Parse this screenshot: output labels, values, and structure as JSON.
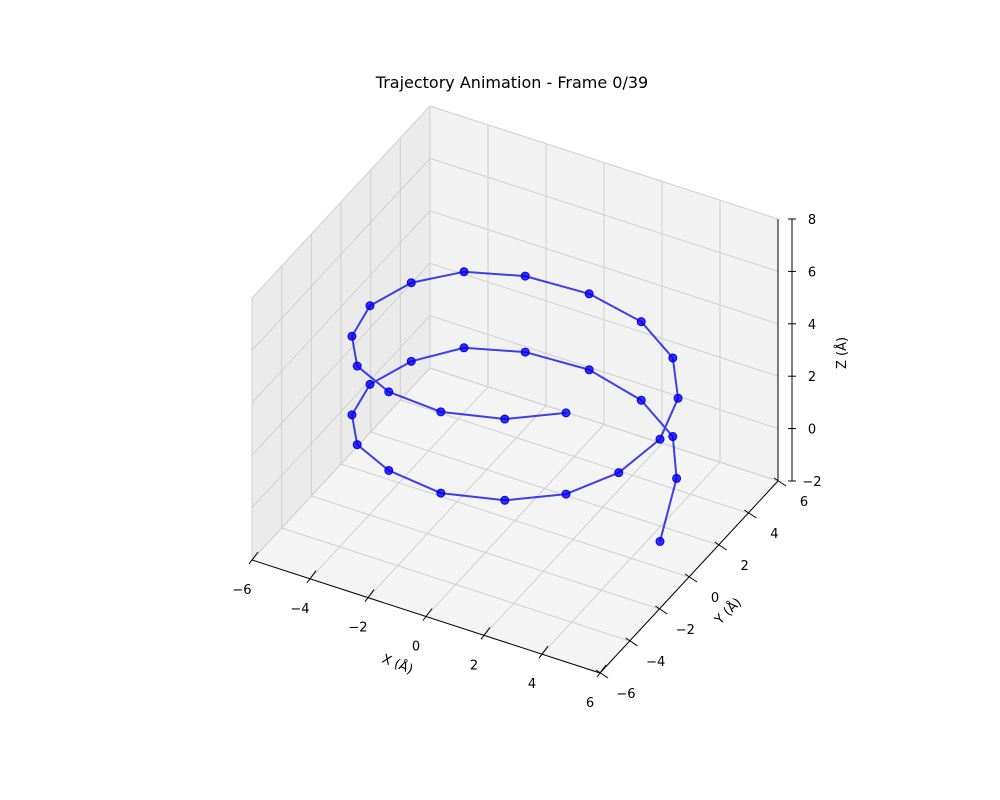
{
  "chart_data": {
    "type": "line3d",
    "title": "Trajectory Animation - Frame 0/39",
    "xlabel": "X (Å)",
    "ylabel": "Y (Å)",
    "zlabel": "Z (Å)",
    "xlim": [
      -6,
      6
    ],
    "ylim": [
      -6,
      6
    ],
    "zlim": [
      -2,
      8
    ],
    "xticks": [
      -6,
      -4,
      -2,
      0,
      2,
      4,
      6
    ],
    "yticks": [
      -6,
      -4,
      -2,
      0,
      2,
      4,
      6
    ],
    "zticks": [
      -2,
      0,
      2,
      4,
      6,
      8
    ],
    "grid": true,
    "series": [
      {
        "color": "#0000ee",
        "marker": "circle",
        "points": [
          [
            5.0,
            0.0,
            -1.0
          ],
          [
            4.6,
            1.9,
            0.1
          ],
          [
            3.6,
            3.6,
            0.3
          ],
          [
            2.0,
            4.6,
            0.5
          ],
          [
            0.0,
            5.0,
            0.7
          ],
          [
            -2.0,
            4.6,
            0.9
          ],
          [
            -3.6,
            3.6,
            1.1
          ],
          [
            -4.6,
            2.0,
            1.2
          ],
          [
            -5.0,
            0.0,
            1.4
          ],
          [
            -4.6,
            -2.0,
            1.6
          ],
          [
            -3.6,
            -3.6,
            1.8
          ],
          [
            -2.0,
            -4.6,
            2.0
          ],
          [
            0.0,
            -5.0,
            2.1
          ],
          [
            2.0,
            -4.6,
            2.3
          ],
          [
            3.6,
            -3.6,
            2.5
          ],
          [
            4.6,
            -2.0,
            2.7
          ],
          [
            5.0,
            0.0,
            2.9
          ],
          [
            4.6,
            2.0,
            3.1
          ],
          [
            3.6,
            3.6,
            3.3
          ],
          [
            2.0,
            4.6,
            3.5
          ],
          [
            0.0,
            5.0,
            3.6
          ],
          [
            -2.0,
            4.6,
            3.8
          ],
          [
            -3.6,
            3.6,
            4.0
          ],
          [
            -4.6,
            2.0,
            4.2
          ],
          [
            -5.0,
            0.0,
            4.4
          ],
          [
            -4.6,
            -2.0,
            4.6
          ],
          [
            -3.6,
            -3.6,
            4.8
          ],
          [
            -2.0,
            -4.6,
            5.0
          ],
          [
            0.0,
            -5.0,
            5.2
          ],
          [
            2.0,
            -4.6,
            5.4
          ],
          [
            3.6,
            -3.6,
            5.6
          ]
        ]
      }
    ]
  }
}
